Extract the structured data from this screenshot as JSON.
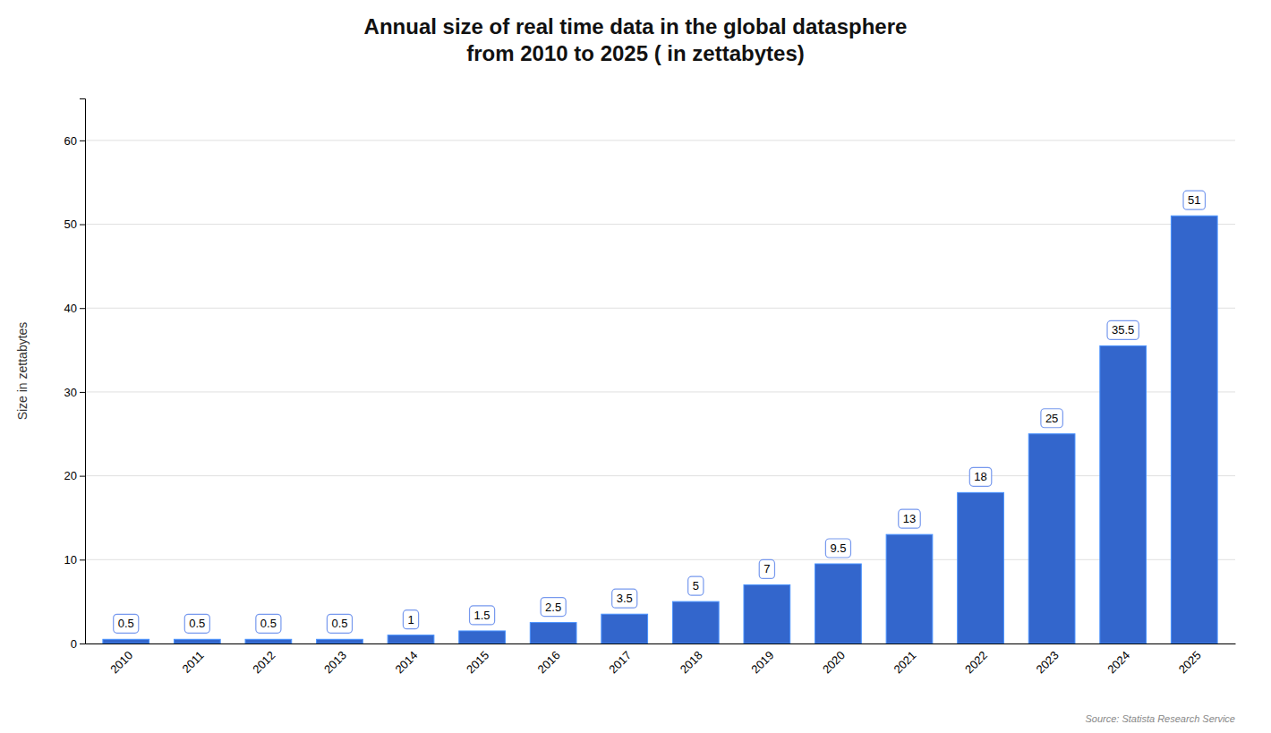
{
  "chart_data": {
    "type": "bar",
    "title": "Annual size of real time data in the global datasphere\nfrom 2010 to 2025 ( in zettabytes)",
    "ylabel": "Size in zettabytes",
    "source": "Source: Statista Research Service",
    "categories": [
      "2010",
      "2011",
      "2012",
      "2013",
      "2014",
      "2015",
      "2016",
      "2017",
      "2018",
      "2019",
      "2020",
      "2021",
      "2022",
      "2023",
      "2024",
      "2025"
    ],
    "values": [
      0.5,
      0.5,
      0.5,
      0.5,
      1.0,
      1.5,
      2.5,
      3.5,
      5.0,
      7.0,
      9.5,
      13.0,
      18.0,
      25.0,
      35.5,
      51.0
    ],
    "color": "#3366cc",
    "ylim": [
      0,
      65
    ],
    "yticks": [
      0,
      10,
      20,
      30,
      40,
      50,
      60
    ],
    "grid": true,
    "data_labels": true
  }
}
